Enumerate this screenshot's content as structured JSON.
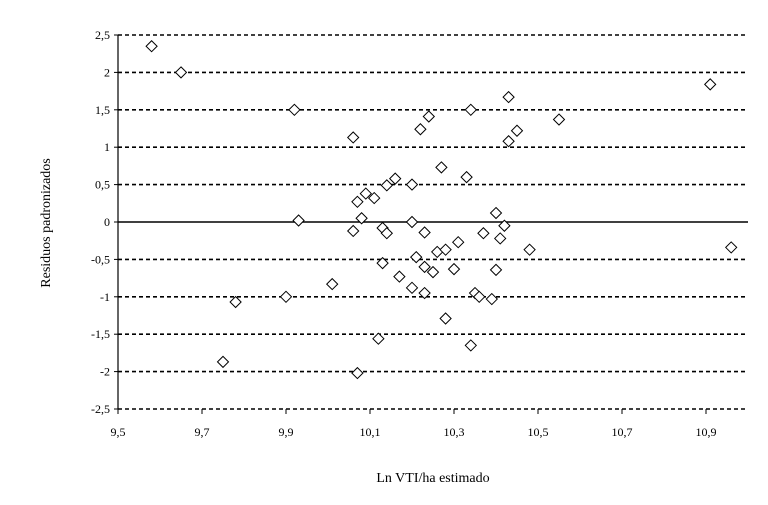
{
  "chart_data": {
    "type": "scatter",
    "xlabel": "Ln VTI/ha estimado",
    "ylabel": "Residuos padronizados",
    "xlim": [
      9.5,
      11.0
    ],
    "ylim": [
      -2.5,
      2.5
    ],
    "x_ticks": [
      9.5,
      9.7,
      9.9,
      10.1,
      10.3,
      10.5,
      10.7,
      10.9
    ],
    "x_tick_labels": [
      "9,5",
      "9,7",
      "9,9",
      "10,1",
      "10,3",
      "10,5",
      "10,7",
      "10,9"
    ],
    "y_ticks": [
      2.5,
      2,
      1.5,
      1,
      0.5,
      0,
      -0.5,
      -1,
      -1.5,
      -2,
      -2.5
    ],
    "y_tick_labels": [
      "2,5",
      "2",
      "1,5",
      "1",
      "0,5",
      "0",
      "-0,5",
      "-1",
      "-1,5",
      "-2",
      "-2,5"
    ],
    "grid": "horizontal dashed",
    "marker": "diamond",
    "marker_color": "#000000",
    "points": [
      {
        "x": 9.58,
        "y": 2.35
      },
      {
        "x": 9.65,
        "y": 2.0
      },
      {
        "x": 9.92,
        "y": 1.5
      },
      {
        "x": 9.93,
        "y": 0.02
      },
      {
        "x": 9.75,
        "y": -1.87
      },
      {
        "x": 9.78,
        "y": -1.07
      },
      {
        "x": 9.9,
        "y": -1.0
      },
      {
        "x": 10.01,
        "y": -0.83
      },
      {
        "x": 10.06,
        "y": 1.13
      },
      {
        "x": 10.07,
        "y": 0.27
      },
      {
        "x": 10.06,
        "y": -0.12
      },
      {
        "x": 10.08,
        "y": 0.05
      },
      {
        "x": 10.09,
        "y": 0.38
      },
      {
        "x": 10.11,
        "y": 0.32
      },
      {
        "x": 10.14,
        "y": 0.49
      },
      {
        "x": 10.16,
        "y": 0.58
      },
      {
        "x": 10.07,
        "y": -2.02
      },
      {
        "x": 10.12,
        "y": -1.56
      },
      {
        "x": 10.13,
        "y": -0.08
      },
      {
        "x": 10.14,
        "y": -0.15
      },
      {
        "x": 10.13,
        "y": -0.55
      },
      {
        "x": 10.17,
        "y": -0.73
      },
      {
        "x": 10.2,
        "y": -0.88
      },
      {
        "x": 10.2,
        "y": 0.5
      },
      {
        "x": 10.2,
        "y": 0.0
      },
      {
        "x": 10.21,
        "y": -0.47
      },
      {
        "x": 10.22,
        "y": 1.24
      },
      {
        "x": 10.24,
        "y": 1.41
      },
      {
        "x": 10.23,
        "y": -0.14
      },
      {
        "x": 10.23,
        "y": -0.6
      },
      {
        "x": 10.25,
        "y": -0.67
      },
      {
        "x": 10.23,
        "y": -0.95
      },
      {
        "x": 10.26,
        "y": -0.4
      },
      {
        "x": 10.27,
        "y": 0.73
      },
      {
        "x": 10.28,
        "y": -0.37
      },
      {
        "x": 10.28,
        "y": -1.29
      },
      {
        "x": 10.3,
        "y": -0.63
      },
      {
        "x": 10.31,
        "y": -0.27
      },
      {
        "x": 10.33,
        "y": 0.6
      },
      {
        "x": 10.34,
        "y": 1.5
      },
      {
        "x": 10.34,
        "y": -1.65
      },
      {
        "x": 10.35,
        "y": -0.95
      },
      {
        "x": 10.36,
        "y": -1.0
      },
      {
        "x": 10.37,
        "y": -0.15
      },
      {
        "x": 10.39,
        "y": -1.03
      },
      {
        "x": 10.4,
        "y": -0.64
      },
      {
        "x": 10.4,
        "y": 0.12
      },
      {
        "x": 10.41,
        "y": -0.22
      },
      {
        "x": 10.42,
        "y": -0.05
      },
      {
        "x": 10.43,
        "y": 1.08
      },
      {
        "x": 10.43,
        "y": 1.67
      },
      {
        "x": 10.45,
        "y": 1.22
      },
      {
        "x": 10.48,
        "y": -0.37
      },
      {
        "x": 10.55,
        "y": 1.37
      },
      {
        "x": 10.91,
        "y": 1.84
      },
      {
        "x": 10.96,
        "y": -0.34
      }
    ]
  }
}
